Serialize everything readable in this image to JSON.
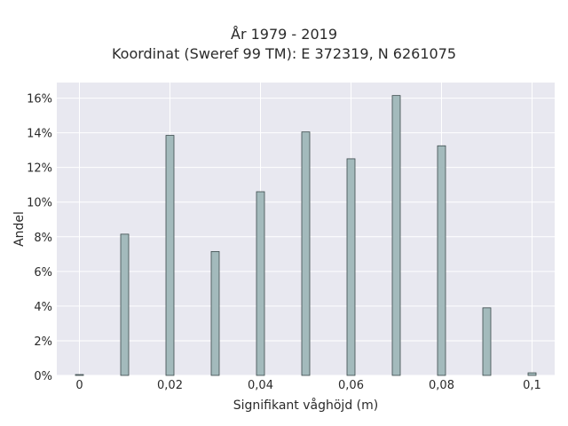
{
  "chart_data": {
    "type": "bar",
    "title_line1": "År 1979 - 2019",
    "title_line2": "Koordinat (Sweref 99 TM): E 372319, N 6261075",
    "xlabel": "Signifikant våghöjd (m)",
    "ylabel": "Andel",
    "x_tick_labels": [
      "0",
      "0,02",
      "0,04",
      "0,06",
      "0,08",
      "0,1"
    ],
    "x_tick_values": [
      0,
      0.02,
      0.04,
      0.06,
      0.08,
      0.1
    ],
    "y_tick_labels": [
      "0%",
      "2%",
      "4%",
      "6%",
      "8%",
      "10%",
      "12%",
      "14%",
      "16%"
    ],
    "y_tick_values": [
      0,
      2,
      4,
      6,
      8,
      10,
      12,
      14,
      16
    ],
    "xlim": [
      -0.005,
      0.105
    ],
    "ylim": [
      0,
      16.9
    ],
    "grid": true,
    "bar_color": "#a3babc",
    "bar_edge_color": "#3b4a4b",
    "plot_background": "#e8e8f0",
    "x": [
      0,
      0.01,
      0.02,
      0.03,
      0.04,
      0.05,
      0.06,
      0.07,
      0.08,
      0.09,
      0.1
    ],
    "values": [
      0.05,
      8.15,
      13.85,
      7.15,
      10.6,
      14.05,
      12.5,
      16.15,
      13.25,
      3.9,
      0.15
    ]
  }
}
